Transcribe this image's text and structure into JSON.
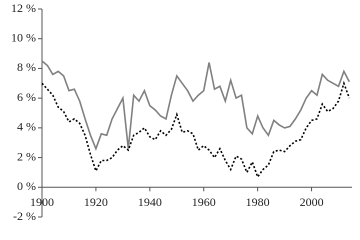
{
  "chart_data": {
    "type": "line",
    "x": [
      1900,
      1902,
      1904,
      1906,
      1908,
      1910,
      1912,
      1914,
      1916,
      1918,
      1920,
      1922,
      1924,
      1926,
      1928,
      1930,
      1932,
      1934,
      1936,
      1938,
      1940,
      1942,
      1944,
      1946,
      1948,
      1950,
      1952,
      1954,
      1956,
      1958,
      1960,
      1962,
      1964,
      1966,
      1968,
      1970,
      1972,
      1974,
      1976,
      1978,
      1980,
      1982,
      1984,
      1986,
      1988,
      1990,
      1992,
      1994,
      1996,
      1998,
      2000,
      2002,
      2004,
      2006,
      2008,
      2010,
      2012,
      2014
    ],
    "series": [
      {
        "color": "#808080",
        "dash": "none",
        "values": [
          8.5,
          8.2,
          7.6,
          7.8,
          7.5,
          6.5,
          6.6,
          5.8,
          4.6,
          3.5,
          2.6,
          3.6,
          3.5,
          4.6,
          5.3,
          6.0,
          2.6,
          6.2,
          5.8,
          6.5,
          5.5,
          5.2,
          4.8,
          4.6,
          6.2,
          7.5,
          7.0,
          6.5,
          5.8,
          6.2,
          6.5,
          8.4,
          6.6,
          6.8,
          5.8,
          7.2,
          6.0,
          6.2,
          4.0,
          3.6,
          4.8,
          4.0,
          3.5,
          4.5,
          4.2,
          4.0,
          4.1,
          4.6,
          5.2,
          6.0,
          6.5,
          6.2,
          7.6,
          7.2,
          7.0,
          6.8,
          7.8,
          7.1
        ]
      },
      {
        "color": "#000000",
        "dash": "2,2",
        "values": [
          7.0,
          6.6,
          6.2,
          5.4,
          5.1,
          4.4,
          4.6,
          4.3,
          3.5,
          2.2,
          1.1,
          1.8,
          1.8,
          2.0,
          2.5,
          2.8,
          2.5,
          3.5,
          3.7,
          4.0,
          3.4,
          3.2,
          3.8,
          3.5,
          3.9,
          4.9,
          3.7,
          3.8,
          3.6,
          2.5,
          2.8,
          2.5,
          2.0,
          2.6,
          1.8,
          1.2,
          2.1,
          1.9,
          1.0,
          1.7,
          0.7,
          1.2,
          1.5,
          2.4,
          2.5,
          2.4,
          2.8,
          3.1,
          3.2,
          4.0,
          4.5,
          4.6,
          5.6,
          5.1,
          5.3,
          5.8,
          7.0,
          6.0
        ]
      }
    ],
    "xlim": [
      1900,
      2015
    ],
    "xticks": [
      1900,
      1920,
      1940,
      1960,
      1980,
      2000
    ],
    "ylim": [
      -2,
      12
    ],
    "yticks": [
      {
        "value": -2,
        "label": "-2 %"
      },
      {
        "value": 0,
        "label": "0 %"
      },
      {
        "value": 2,
        "label": "2 %"
      },
      {
        "value": 4,
        "label": "4 %"
      },
      {
        "value": 6,
        "label": "6 %"
      },
      {
        "value": 8,
        "label": "8 %"
      },
      {
        "value": 10,
        "label": "10 %"
      },
      {
        "value": 12,
        "label": "12 %"
      }
    ],
    "grid": false
  }
}
